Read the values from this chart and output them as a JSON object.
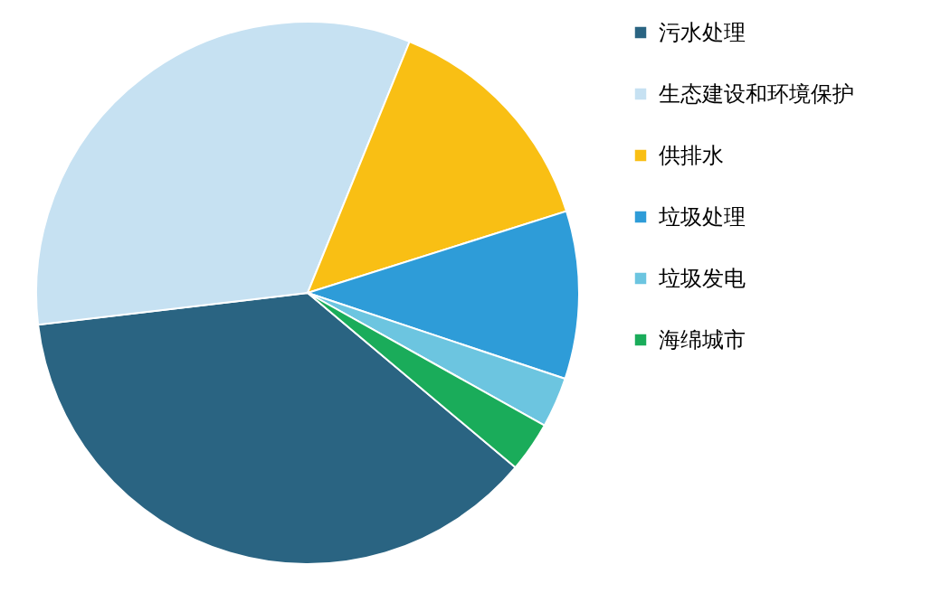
{
  "chart_data": {
    "type": "pie",
    "categories": [
      "污水处理",
      "生态建设和环境保护",
      "供排水",
      "垃圾处理",
      "垃圾发电",
      "海绵城市"
    ],
    "values": [
      37,
      33,
      14,
      10,
      3,
      3
    ],
    "colors": [
      "#2a6482",
      "#c6e1f2",
      "#f9bf14",
      "#2e9cd8",
      "#6cc5e0",
      "#1aac5a"
    ],
    "legend": "right"
  }
}
